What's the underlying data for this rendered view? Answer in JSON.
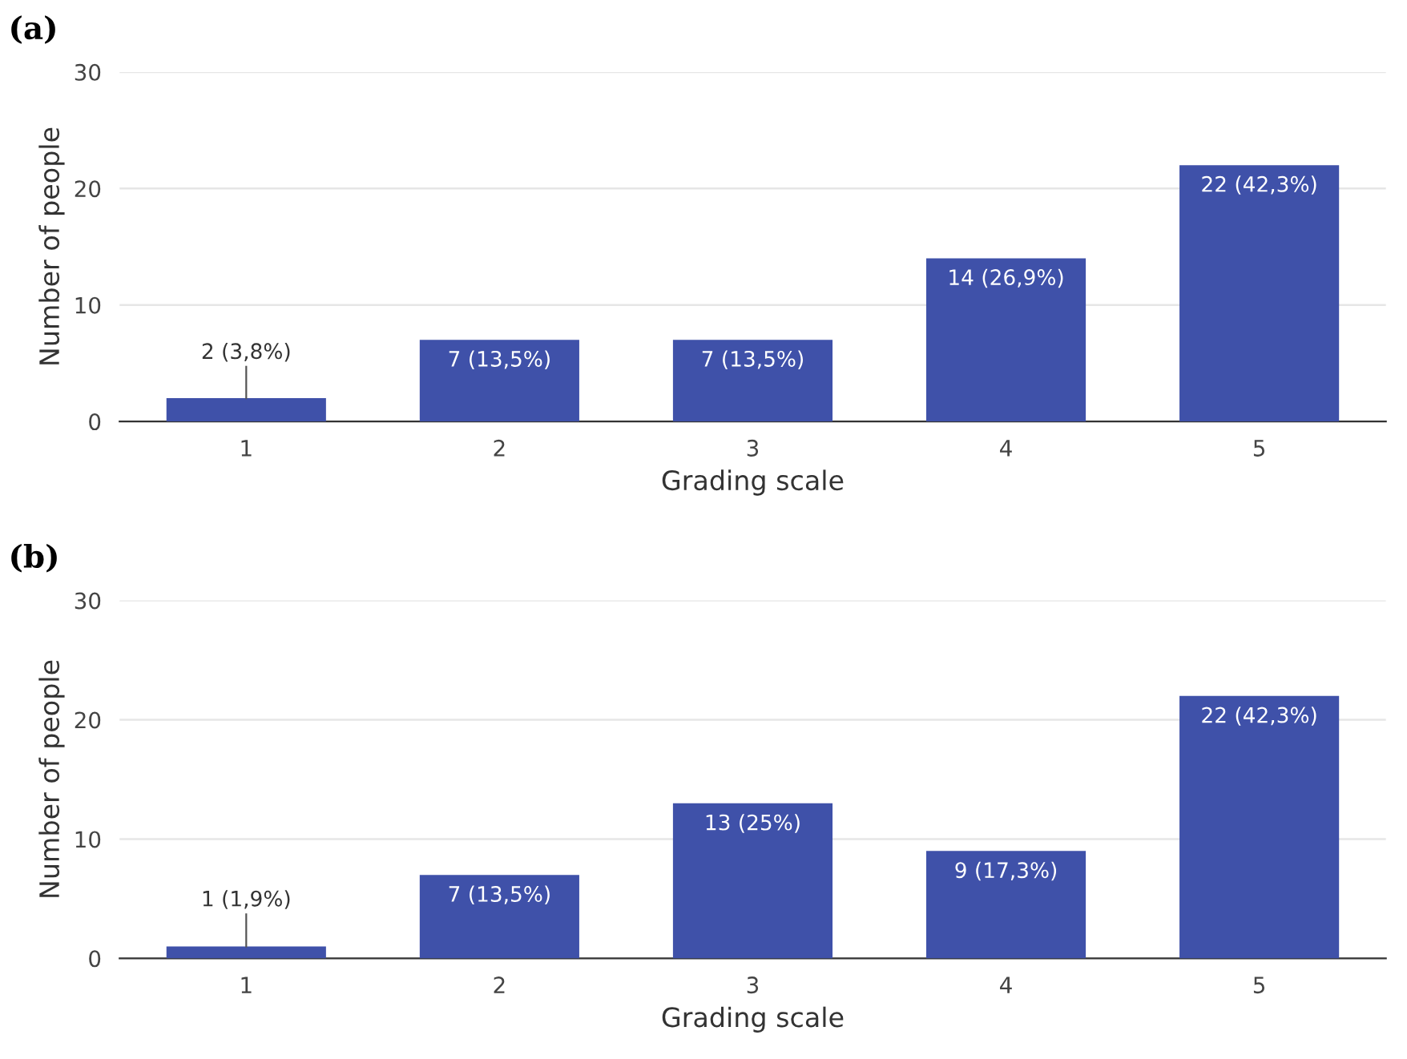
{
  "chart_data": [
    {
      "type": "bar",
      "title": "(a)",
      "xlabel": "Grading scale",
      "ylabel": "Number of people",
      "categories": [
        "1",
        "2",
        "3",
        "4",
        "5"
      ],
      "values": [
        2,
        7,
        7,
        14,
        22
      ],
      "value_labels": [
        "2 (3,8%)",
        "7 (13,5%)",
        "7 (13,5%)",
        "14 (26,9%)",
        "22 (42,3%)"
      ],
      "color": "#3f51a9",
      "ylim": [
        0,
        30
      ],
      "yticks": [
        0,
        10,
        20,
        30
      ],
      "grid": "y",
      "legend": false
    },
    {
      "type": "bar",
      "title": "(b)",
      "xlabel": "Grading scale",
      "ylabel": "Number of people",
      "categories": [
        "1",
        "2",
        "3",
        "4",
        "5"
      ],
      "values": [
        1,
        7,
        13,
        9,
        22
      ],
      "value_labels": [
        "1 (1,9%)",
        "7 (13,5%)",
        "13 (25%)",
        "9 (17,3%)",
        "22 (42,3%)"
      ],
      "color": "#3f51a9",
      "ylim": [
        0,
        30
      ],
      "yticks": [
        0,
        10,
        20,
        30
      ],
      "grid": "y",
      "legend": false
    }
  ]
}
